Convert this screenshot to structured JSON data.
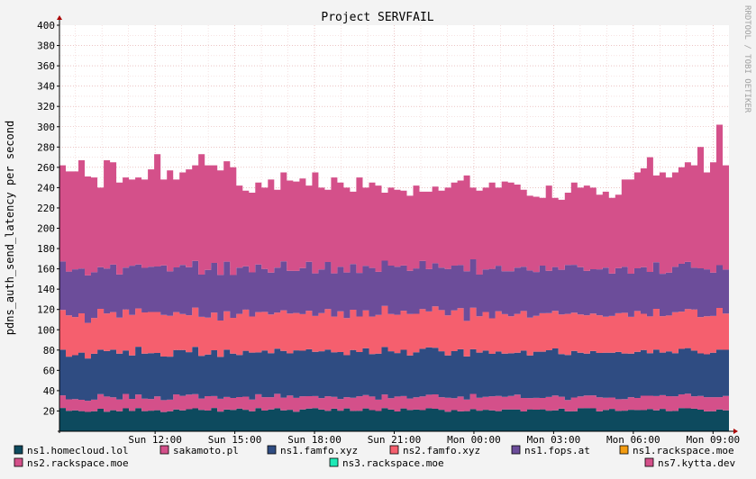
{
  "chart_data": {
    "type": "area",
    "stacked": true,
    "title": "Project SERVFAIL",
    "ylabel": "pdns_auth_send_latency per second",
    "watermark": "RRDTOOL / TOBI OETIKER",
    "ylim": [
      0,
      400
    ],
    "y_ticks": [
      20,
      40,
      60,
      80,
      100,
      120,
      140,
      160,
      180,
      200,
      220,
      240,
      260,
      280,
      300,
      320,
      340,
      360,
      380,
      400
    ],
    "x_ticks": [
      "Sun 12:00",
      "Sun 15:00",
      "Sun 18:00",
      "Sun 21:00",
      "Mon 00:00",
      "Mon 03:00",
      "Mon 06:00",
      "Mon 09:00"
    ],
    "x_tick_hours": [
      12,
      15,
      18,
      21,
      24,
      27,
      30,
      33
    ],
    "x_range_hours": [
      8.4,
      33.6
    ],
    "grid": true,
    "legend_position": "bottom",
    "series": [
      {
        "name": "ns1.homecloud.lol",
        "color": "#0d4a5e",
        "base": 21,
        "amp": 2,
        "seed": 1
      },
      {
        "name": "sakamoto.pl",
        "color": "#d4508a",
        "base": 13,
        "amp": 2,
        "seed": 2
      },
      {
        "name": "ns1.famfo.xyz",
        "color": "#2f4c82",
        "base": 44,
        "amp": 3,
        "seed": 3
      },
      {
        "name": "ns2.famfo.xyz",
        "color": "#f55f6e",
        "base": 38,
        "amp": 3,
        "seed": 4
      },
      {
        "name": "ns1.fops.at",
        "color": "#6c4d9a",
        "base": 45,
        "amp": 4,
        "seed": 5
      },
      {
        "name": "ns1.rackspace.moe",
        "color": "#f39c12",
        "base": 0,
        "amp": 0,
        "seed": 6
      },
      {
        "name": "ns2.rackspace.moe",
        "color": "#d4508a",
        "base": 85,
        "amp": 10,
        "seed": 7
      },
      {
        "name": "ns3.rackspace.moe",
        "color": "#1de9b6",
        "base": 0,
        "amp": 0,
        "seed": 8
      },
      {
        "name": "ns7.kytta.dev",
        "color": "#d4508a",
        "base": 0,
        "amp": 0,
        "seed": 9
      }
    ],
    "total_profile": [
      262,
      256,
      256,
      267,
      251,
      250,
      240,
      267,
      265,
      245,
      250,
      248,
      250,
      248,
      258,
      273,
      248,
      257,
      248,
      255,
      258,
      262,
      273,
      262,
      262,
      257,
      266,
      260,
      242,
      237,
      235,
      245,
      240,
      248,
      238,
      255,
      247,
      246,
      249,
      242,
      255,
      240,
      238,
      250,
      245,
      240,
      236,
      250,
      240,
      245,
      242,
      235,
      240,
      238,
      237,
      232,
      242,
      236,
      236,
      241,
      237,
      240,
      245,
      247,
      252,
      240,
      237,
      240,
      245,
      240,
      246,
      245,
      243,
      238,
      232,
      231,
      230,
      242,
      230,
      228,
      235,
      245,
      240,
      242,
      240,
      233,
      236,
      230,
      233,
      248,
      248,
      255,
      259,
      270,
      252,
      255,
      250,
      255,
      260,
      265,
      262,
      280,
      255,
      265,
      302,
      262
    ]
  },
  "legend": [
    {
      "label": "ns1.homecloud.lol",
      "color": "#0d4a5e"
    },
    {
      "label": "sakamoto.pl",
      "color": "#d4508a"
    },
    {
      "label": "ns1.famfo.xyz",
      "color": "#2f4c82"
    },
    {
      "label": "ns2.famfo.xyz",
      "color": "#f55f6e"
    },
    {
      "label": "ns1.fops.at",
      "color": "#6c4d9a"
    },
    {
      "label": "ns1.rackspace.moe",
      "color": "#f39c12"
    },
    {
      "label": "ns2.rackspace.moe",
      "color": "#d4508a"
    },
    {
      "label": "ns3.rackspace.moe",
      "color": "#1de9b6"
    },
    {
      "label": "ns7.kytta.dev",
      "color": "#d4508a"
    }
  ]
}
